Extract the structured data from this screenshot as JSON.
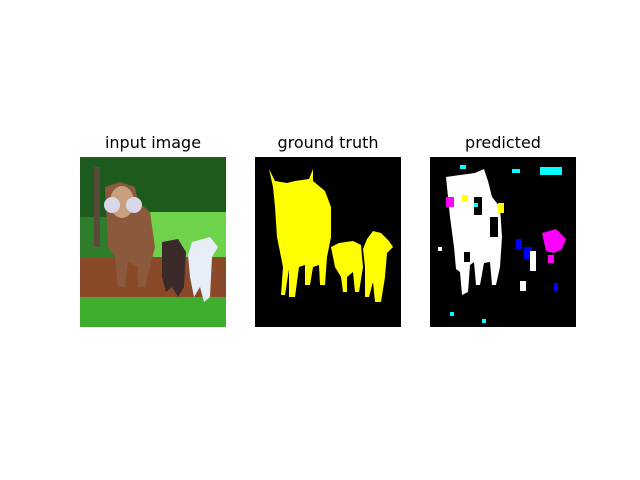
{
  "figure": {
    "panels": [
      {
        "title": "input image",
        "content": "photo of a zebu cow and two calves standing on grass under trees"
      },
      {
        "title": "ground truth",
        "content": "segmentation mask"
      },
      {
        "title": "predicted",
        "content": "segmentation mask"
      }
    ]
  },
  "colors": {
    "background": "#000000",
    "mask_cow": "#ffff00",
    "pred_cow": "#ffffff",
    "pred_magenta": "#ff00ff",
    "pred_blue": "#0000ff",
    "pred_cyan": "#00ffff",
    "grass": "#3fae2f",
    "sky_trees": "#2f7d2a"
  }
}
